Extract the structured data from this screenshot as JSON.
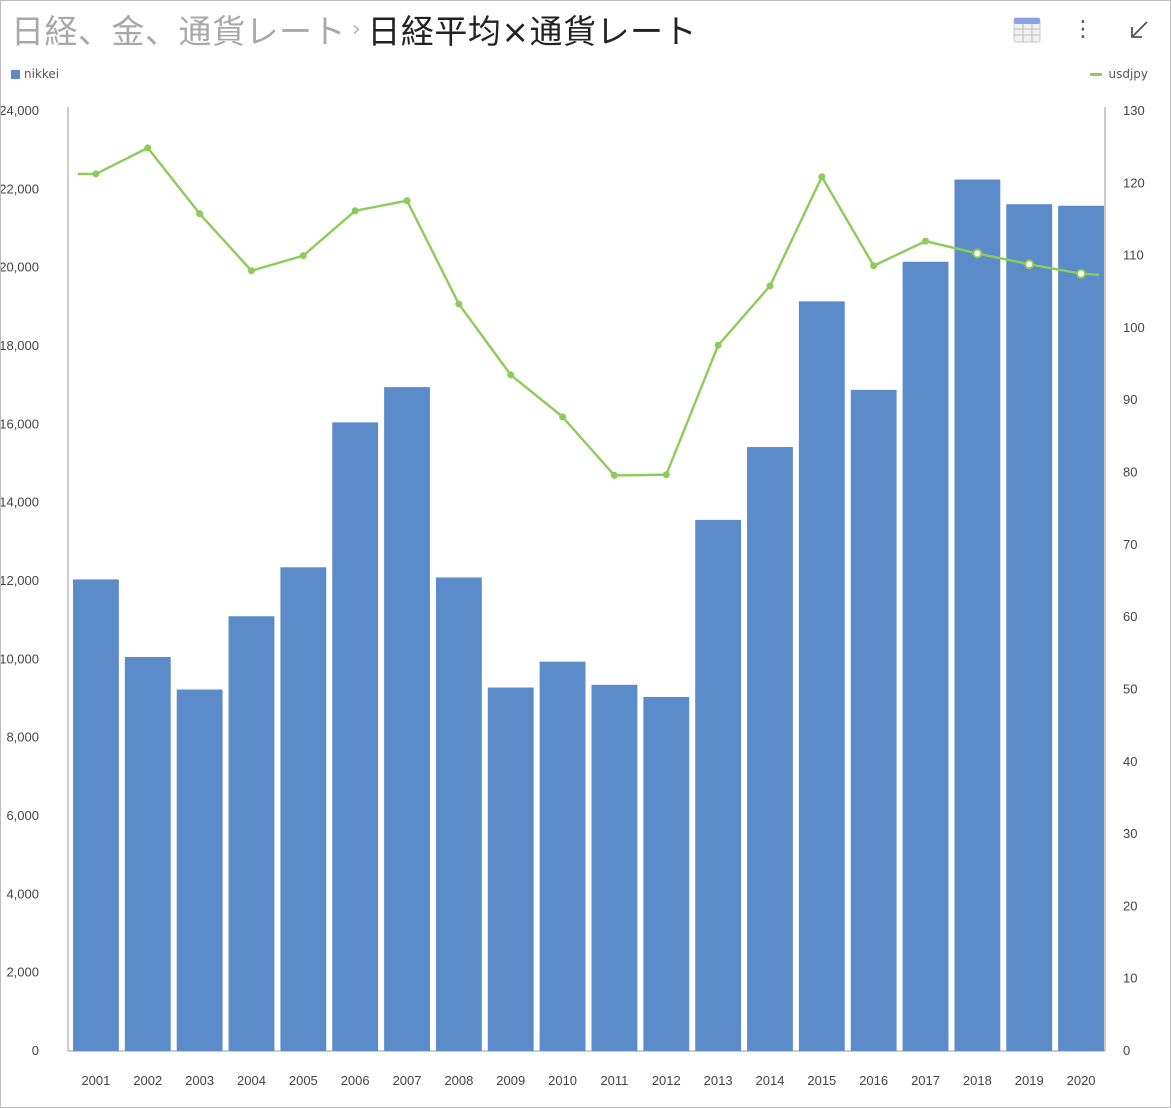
{
  "header": {
    "breadcrumb_parent": "日経、金、通貨レート",
    "breadcrumb_separator": "›",
    "title": "日経平均×通貨レート"
  },
  "toolbar": {
    "table_view_icon": "table-icon",
    "more_icon": "kebab-menu-icon",
    "more_glyph": "⋮",
    "collapse_icon": "arrow-down-left-icon"
  },
  "legend": {
    "left_label": "nikkei",
    "right_label": "usdjpy"
  },
  "colors": {
    "bar": "#5B8BC9",
    "line": "#8DCB5A",
    "axis": "#999999",
    "text": "#444444"
  },
  "chart_data": {
    "type": "bar+line",
    "categories": [
      "2001",
      "2002",
      "2003",
      "2004",
      "2005",
      "2006",
      "2007",
      "2008",
      "2009",
      "2010",
      "2011",
      "2012",
      "2013",
      "2014",
      "2015",
      "2016",
      "2017",
      "2018",
      "2019",
      "2020"
    ],
    "series": [
      {
        "name": "nikkei",
        "type": "bar",
        "axis": "left",
        "values": [
          12040,
          10060,
          9230,
          11100,
          12350,
          16050,
          16950,
          12090,
          9280,
          9940,
          9350,
          9040,
          13560,
          15420,
          19140,
          16880,
          20150,
          22250,
          21620,
          21580
        ]
      },
      {
        "name": "usdjpy",
        "type": "line",
        "axis": "right",
        "values": [
          121.3,
          124.9,
          115.8,
          107.9,
          110.0,
          116.2,
          117.6,
          103.3,
          93.5,
          87.7,
          79.6,
          79.7,
          97.6,
          105.8,
          120.9,
          108.6,
          112.0,
          110.3,
          108.8,
          107.5
        ]
      }
    ],
    "y_left": {
      "ylim": [
        0,
        24000
      ],
      "ticks": [
        0,
        2000,
        4000,
        6000,
        8000,
        10000,
        12000,
        14000,
        16000,
        18000,
        20000,
        22000,
        24000
      ],
      "tick_labels": [
        "0",
        "2,000",
        "4,000",
        "6,000",
        "8,000",
        "10,000",
        "12,000",
        "14,000",
        "16,000",
        "18,000",
        "20,000",
        "22,000",
        "24,000"
      ]
    },
    "y_right": {
      "ylim": [
        0,
        130
      ],
      "ticks": [
        0,
        10,
        20,
        30,
        40,
        50,
        60,
        70,
        80,
        90,
        100,
        110,
        120,
        130
      ],
      "tick_labels": [
        "0",
        "10",
        "20",
        "30",
        "40",
        "50",
        "60",
        "70",
        "80",
        "90",
        "100",
        "110",
        "120",
        "130"
      ]
    },
    "grid": false,
    "legend_placement": "top-left and top-right"
  }
}
